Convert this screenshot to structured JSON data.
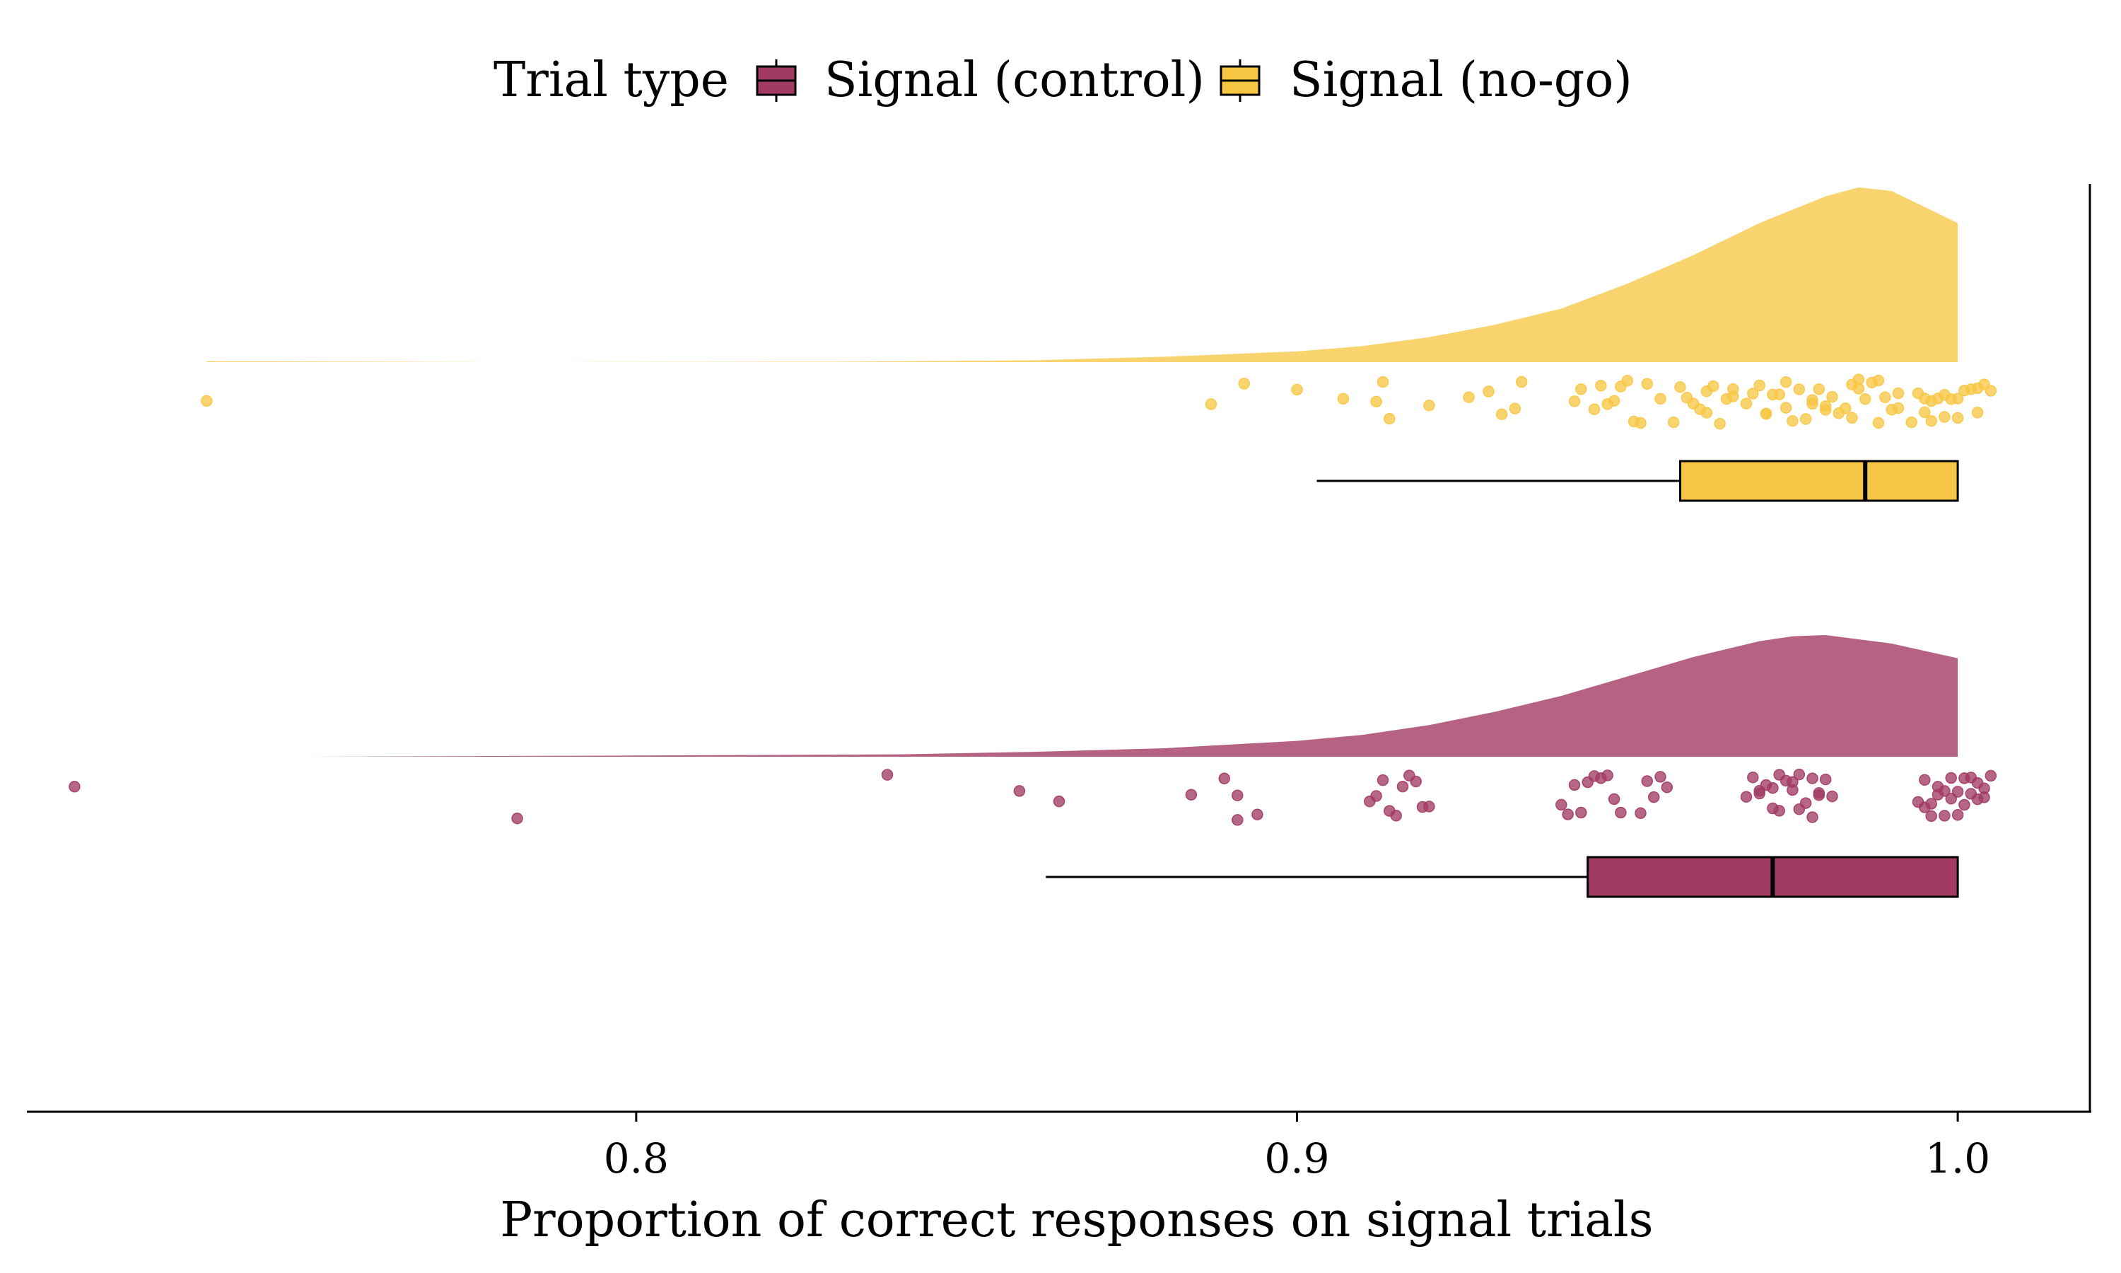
{
  "chart_data": {
    "type": "raincloud",
    "legend": {
      "title": "Trial type",
      "position": "top",
      "entries": [
        {
          "label": "Signal (control)",
          "color": "#a23b64"
        },
        {
          "label": "Signal (no-go)",
          "color": "#f7c644"
        }
      ]
    },
    "xlabel": "Proportion of correct responses on signal trials",
    "xlim": [
      0.708,
      1.02
    ],
    "xticks": [
      {
        "value": 0.8,
        "label": "0.8"
      },
      {
        "value": 0.9,
        "label": "0.9"
      },
      {
        "value": 1.0,
        "label": "1.0"
      }
    ],
    "grid": false,
    "series": [
      {
        "name": "Signal (no-go)",
        "color": "#f7c644",
        "box": {
          "whisker_low": 0.903,
          "q1": 0.958,
          "median": 0.986,
          "q3": 1.0,
          "whisker_high": 1.0
        },
        "density": {
          "x": [
            0.735,
            0.78,
            0.83,
            0.86,
            0.88,
            0.9,
            0.91,
            0.92,
            0.93,
            0.94,
            0.95,
            0.96,
            0.97,
            0.98,
            0.985,
            0.99,
            1.0
          ],
          "y": [
            0.005,
            0.0,
            0.002,
            0.01,
            0.03,
            0.06,
            0.09,
            0.14,
            0.21,
            0.3,
            0.44,
            0.6,
            0.78,
            0.93,
            0.98,
            0.96,
            0.78
          ]
        },
        "points": [
          0.735,
          0.887,
          0.892,
          0.9,
          0.907,
          0.912,
          0.913,
          0.914,
          0.92,
          0.926,
          0.929,
          0.931,
          0.933,
          0.934,
          0.942,
          0.943,
          0.945,
          0.946,
          0.947,
          0.948,
          0.949,
          0.95,
          0.951,
          0.952,
          0.953,
          0.955,
          0.957,
          0.958,
          0.959,
          0.96,
          0.961,
          0.962,
          0.963,
          0.964,
          0.965,
          0.966,
          0.968,
          0.969,
          0.97,
          0.971,
          0.972,
          0.973,
          0.974,
          0.975,
          0.976,
          0.977,
          0.978,
          0.979,
          0.98,
          0.981,
          0.982,
          0.983,
          0.984,
          0.985,
          0.986,
          0.987,
          0.988,
          0.989,
          0.99,
          0.991,
          0.993,
          0.994,
          0.995,
          0.996,
          0.997,
          0.998,
          0.999,
          1.0,
          1.001,
          1.002,
          1.003,
          1.004,
          1.005,
          0.971,
          0.984,
          0.988,
          0.996,
          1.0,
          0.962,
          0.974,
          0.978,
          0.985,
          0.991,
          0.998,
          1.003,
          0.966,
          0.98,
          0.995
        ]
      },
      {
        "name": "Signal (control)",
        "color": "#a23b64",
        "box": {
          "whisker_low": 0.862,
          "q1": 0.944,
          "median": 0.972,
          "q3": 1.0,
          "whisker_high": 1.0
        },
        "density": {
          "x": [
            0.712,
            0.75,
            0.8,
            0.84,
            0.86,
            0.88,
            0.9,
            0.91,
            0.92,
            0.93,
            0.94,
            0.95,
            0.96,
            0.97,
            0.975,
            0.98,
            0.99,
            1.0
          ],
          "y": [
            0.0,
            0.0,
            0.01,
            0.02,
            0.04,
            0.07,
            0.13,
            0.18,
            0.26,
            0.37,
            0.5,
            0.66,
            0.82,
            0.95,
            0.99,
            1.0,
            0.93,
            0.81
          ]
        },
        "points": [
          0.715,
          0.782,
          0.838,
          0.858,
          0.864,
          0.884,
          0.889,
          0.891,
          0.891,
          0.894,
          0.911,
          0.912,
          0.913,
          0.914,
          0.915,
          0.916,
          0.917,
          0.918,
          0.919,
          0.92,
          0.94,
          0.941,
          0.942,
          0.943,
          0.944,
          0.945,
          0.946,
          0.947,
          0.948,
          0.949,
          0.952,
          0.953,
          0.954,
          0.955,
          0.956,
          0.968,
          0.969,
          0.97,
          0.971,
          0.972,
          0.973,
          0.974,
          0.975,
          0.976,
          0.977,
          0.978,
          0.979,
          0.98,
          0.981,
          0.97,
          0.973,
          0.976,
          0.979,
          0.972,
          0.975,
          0.978,
          0.995,
          0.996,
          0.997,
          0.998,
          0.999,
          1.0,
          1.001,
          1.002,
          1.003,
          1.004,
          1.005,
          0.994,
          0.997,
          1.0,
          1.003,
          0.996,
          0.999,
          1.002,
          0.995,
          0.998,
          1.001,
          1.004
        ]
      }
    ]
  }
}
